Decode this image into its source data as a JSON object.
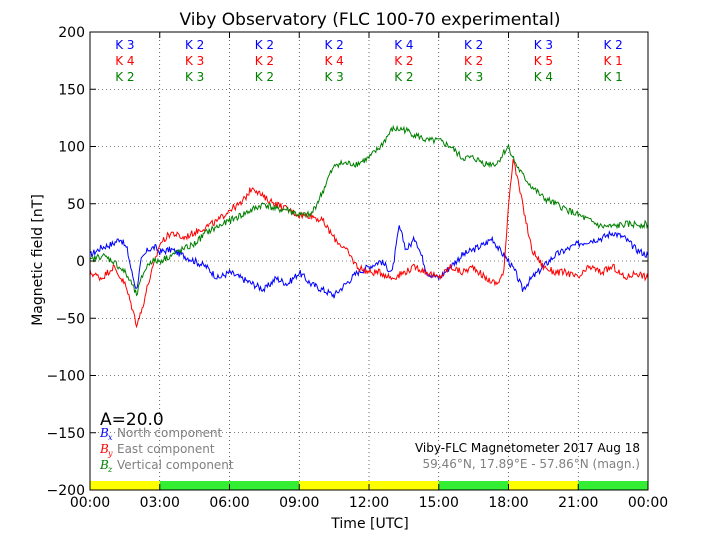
{
  "chart_data": {
    "type": "line",
    "title": "Viby Observatory (FLC 100-70 experimental)",
    "xlabel": "Time [UTC]",
    "ylabel": "Magnetic field [nT]",
    "xlim": [
      0,
      24
    ],
    "ylim": [
      -200,
      200
    ],
    "xticks": [
      0,
      3,
      6,
      9,
      12,
      15,
      18,
      21,
      24
    ],
    "xtick_labels": [
      "00:00",
      "03:00",
      "06:00",
      "09:00",
      "12:00",
      "15:00",
      "18:00",
      "21:00",
      "00:00"
    ],
    "yticks": [
      -200,
      -150,
      -100,
      -50,
      0,
      50,
      100,
      150,
      200
    ],
    "ytick_labels": [
      "−200",
      "−150",
      "−100",
      "−50",
      "0",
      "50",
      "100",
      "150",
      "200"
    ],
    "grid": true,
    "k_index_rows": [
      {
        "component": "Bx",
        "color": "#0000ff",
        "labels": [
          "K 3",
          "K 2",
          "K 2",
          "K 2",
          "K 4",
          "K 2",
          "K 3",
          "K 2"
        ]
      },
      {
        "component": "By",
        "color": "#ff0000",
        "labels": [
          "K 4",
          "K 3",
          "K 2",
          "K 4",
          "K 2",
          "K 2",
          "K 5",
          "K 1"
        ]
      },
      {
        "component": "Bz",
        "color": "#008000",
        "labels": [
          "K 2",
          "K 3",
          "K 2",
          "K 3",
          "K 2",
          "K 3",
          "K 4",
          "K 1"
        ]
      }
    ],
    "activity_bar": {
      "colors": {
        "active": "#ffff00",
        "quiet": "#33ee33"
      },
      "segments": [
        "active",
        "quiet",
        "quiet",
        "active",
        "active",
        "quiet",
        "active",
        "quiet"
      ]
    },
    "a_index": "A=20.0",
    "legend": {
      "placement": "lower-left",
      "entries": [
        {
          "symbol": "B",
          "sub": "x",
          "label": "North component",
          "color": "#0000ff"
        },
        {
          "symbol": "B",
          "sub": "y",
          "label": "East component",
          "color": "#ff0000"
        },
        {
          "symbol": "B",
          "sub": "z",
          "label": "Vertical component",
          "color": "#008000"
        }
      ]
    },
    "annotation_line1": "Viby-FLC Magnetometer 2017 Aug 18",
    "annotation_line2": "59.46°N, 17.89°E - 57.86°N (magn.)",
    "series": [
      {
        "name": "Bx North component",
        "color": "#0000ff",
        "x": [
          0,
          0.5,
          1,
          1.3,
          1.6,
          1.8,
          2.0,
          2.2,
          2.5,
          2.8,
          3.0,
          3.5,
          4.0,
          4.5,
          5.0,
          5.5,
          6.0,
          6.5,
          7.0,
          7.5,
          8.0,
          8.5,
          9.0,
          9.5,
          10.0,
          10.5,
          11.0,
          11.5,
          12.0,
          12.5,
          13.0,
          13.3,
          13.6,
          14.0,
          14.5,
          15.0,
          15.5,
          16.0,
          16.5,
          17.0,
          17.3,
          17.6,
          18.0,
          18.3,
          18.6,
          19.0,
          19.5,
          20.0,
          20.5,
          21.0,
          21.5,
          22.0,
          22.5,
          23.0,
          23.5,
          24.0
        ],
        "y": [
          5,
          12,
          15,
          20,
          10,
          -10,
          -25,
          0,
          10,
          12,
          8,
          10,
          5,
          0,
          -5,
          -15,
          -10,
          -15,
          -20,
          -25,
          -15,
          -20,
          -10,
          -20,
          -25,
          -30,
          -20,
          -10,
          -5,
          0,
          -10,
          30,
          10,
          20,
          -10,
          -15,
          -5,
          5,
          10,
          15,
          20,
          10,
          0,
          -10,
          -25,
          -15,
          -5,
          5,
          10,
          15,
          18,
          20,
          25,
          20,
          10,
          5
        ]
      },
      {
        "name": "By East component",
        "color": "#ff0000",
        "x": [
          0,
          0.5,
          1,
          1.5,
          1.8,
          2.0,
          2.2,
          2.5,
          2.8,
          3.0,
          3.5,
          4.0,
          4.5,
          5.0,
          5.5,
          6.0,
          6.5,
          7.0,
          7.5,
          8.0,
          8.5,
          9.0,
          9.5,
          10.0,
          10.5,
          11.0,
          11.5,
          12.0,
          12.5,
          13.0,
          13.5,
          14.0,
          14.5,
          15.0,
          15.5,
          16.0,
          16.5,
          17.0,
          17.5,
          17.8,
          18.0,
          18.2,
          18.5,
          18.8,
          19.0,
          19.5,
          20.0,
          20.5,
          21.0,
          21.5,
          22.0,
          22.5,
          23.0,
          23.5,
          24.0
        ],
        "y": [
          -10,
          -15,
          -5,
          -20,
          -40,
          -55,
          -45,
          -20,
          0,
          15,
          25,
          20,
          25,
          30,
          35,
          45,
          50,
          65,
          55,
          50,
          45,
          40,
          40,
          35,
          20,
          10,
          -5,
          -10,
          -10,
          -15,
          -10,
          -5,
          -10,
          -15,
          -5,
          -10,
          -5,
          -15,
          -20,
          -10,
          50,
          90,
          60,
          30,
          10,
          -5,
          -10,
          -10,
          -15,
          -5,
          -10,
          -5,
          -15,
          -10,
          -15
        ]
      },
      {
        "name": "Bz Vertical component",
        "color": "#008000",
        "x": [
          0,
          0.5,
          1,
          1.5,
          1.8,
          2.0,
          2.3,
          2.6,
          3.0,
          3.5,
          4.0,
          4.5,
          5.0,
          5.5,
          6.0,
          6.5,
          7.0,
          7.5,
          8.0,
          8.5,
          9.0,
          9.5,
          10.0,
          10.3,
          10.6,
          11.0,
          11.5,
          12.0,
          12.5,
          13.0,
          13.5,
          14.0,
          14.5,
          15.0,
          15.5,
          16.0,
          16.5,
          17.0,
          17.5,
          17.8,
          18.0,
          18.3,
          18.6,
          19.0,
          19.5,
          20.0,
          20.5,
          21.0,
          21.5,
          22.0,
          22.5,
          23.0,
          23.5,
          24.0
        ],
        "y": [
          0,
          5,
          0,
          -10,
          -20,
          -30,
          -10,
          0,
          0,
          5,
          10,
          15,
          25,
          30,
          35,
          40,
          45,
          50,
          45,
          45,
          40,
          40,
          60,
          75,
          85,
          85,
          85,
          90,
          100,
          115,
          115,
          110,
          105,
          105,
          100,
          90,
          90,
          85,
          85,
          95,
          100,
          85,
          75,
          65,
          55,
          50,
          45,
          40,
          35,
          30,
          30,
          32,
          32,
          32
        ]
      }
    ]
  }
}
